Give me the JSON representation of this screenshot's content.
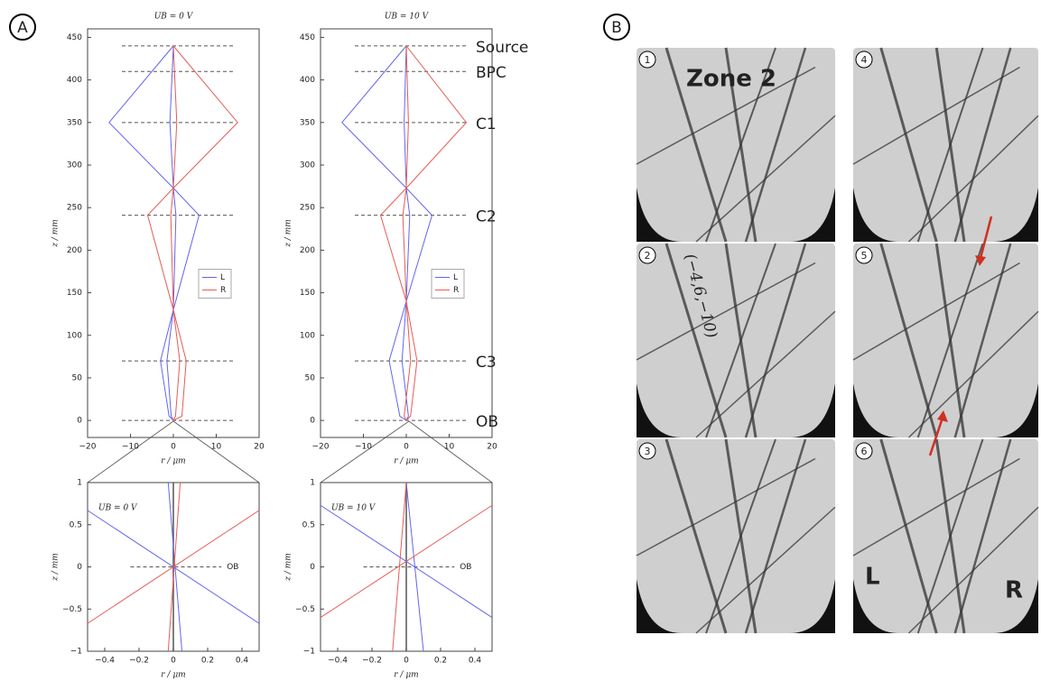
{
  "panel_labels": [
    "A",
    "B"
  ],
  "chart_data": [
    {
      "type": "line",
      "title": "UB = 0 V",
      "xlabel": "r / μm",
      "ylabel": "z / mm",
      "xlim": [
        -20,
        20
      ],
      "ylim": [
        -20,
        460
      ],
      "xticks": [
        {
          "value": -20,
          "label": "−20"
        },
        {
          "value": -10,
          "label": "−10"
        },
        0,
        10,
        20
      ],
      "yticks": [
        0,
        50,
        100,
        150,
        200,
        250,
        300,
        350,
        400,
        450
      ],
      "planes": [
        440,
        410,
        350,
        241,
        70,
        0
      ],
      "legend": "center right",
      "series": [
        {
          "name": "L",
          "color": "#6464f0",
          "x": [
            0,
            -15,
            0,
            6,
            0,
            -3,
            -1,
            0,
            null,
            0,
            -0.8,
            0,
            0.6,
            0,
            -1.5,
            -0.5,
            0
          ],
          "values": [
            440,
            350,
            273,
            241,
            130,
            70,
            5,
            0,
            null,
            440,
            350,
            273,
            241,
            130,
            70,
            5,
            0
          ]
        },
        {
          "name": "R",
          "color": "#e65c55",
          "x": [
            0,
            15,
            0,
            -6,
            0,
            3,
            2,
            0,
            null,
            0,
            0.8,
            0,
            -0.6,
            0,
            1.5,
            0.5,
            0
          ],
          "values": [
            440,
            350,
            273,
            241,
            130,
            70,
            5,
            0,
            null,
            440,
            350,
            273,
            241,
            130,
            70,
            5,
            0
          ]
        }
      ]
    },
    {
      "type": "line",
      "title": "UB = 10 V",
      "xlabel": "r / μm",
      "ylabel": "z / mm",
      "xlim": [
        -20,
        20
      ],
      "ylim": [
        -20,
        460
      ],
      "xticks": [
        {
          "value": -20,
          "label": "−20"
        },
        {
          "value": -10,
          "label": "−10"
        },
        0,
        10,
        20
      ],
      "yticks": [
        0,
        50,
        100,
        150,
        200,
        250,
        300,
        350,
        400,
        450
      ],
      "planes": [
        440,
        410,
        350,
        241,
        70,
        0
      ],
      "plane_labels": [
        "Source",
        "BPC",
        "C1",
        "C2",
        "C3",
        "OB"
      ],
      "legend": "center right",
      "series": [
        {
          "name": "L",
          "color": "#6464f0",
          "x": [
            0,
            -15,
            0,
            6,
            0,
            -4,
            -1.5,
            0,
            null,
            0,
            -0.5,
            0,
            0.8,
            0,
            -1,
            0.5,
            0
          ],
          "values": [
            440,
            350,
            273,
            241,
            140,
            70,
            5,
            0,
            null,
            440,
            350,
            273,
            241,
            140,
            70,
            5,
            0
          ]
        },
        {
          "name": "R",
          "color": "#e65c55",
          "x": [
            0,
            14,
            0,
            -6,
            0,
            2.5,
            1,
            0,
            null,
            0,
            0.5,
            0,
            -0.8,
            0,
            1,
            -0.5,
            0
          ],
          "values": [
            440,
            350,
            273,
            241,
            140,
            70,
            5,
            0,
            null,
            440,
            350,
            273,
            241,
            140,
            70,
            5,
            0
          ]
        }
      ]
    },
    {
      "type": "line",
      "annotation": "UB = 0 V",
      "xlabel": "r / μm",
      "ylabel": "z / mm",
      "xlim": [
        -0.5,
        0.5
      ],
      "ylim": [
        -1,
        1
      ],
      "xticks": [
        {
          "value": -0.4,
          "label": "−0.4"
        },
        {
          "value": -0.2,
          "label": "−0.2"
        },
        0,
        0.2,
        0.4
      ],
      "yticks": [
        {
          "value": -1,
          "label": "−1"
        },
        {
          "value": -0.5,
          "label": "−0.5"
        },
        0,
        0.5,
        1
      ],
      "planes": [
        0
      ],
      "plane_labels": [
        "OB"
      ],
      "series": [
        {
          "name": "L",
          "color": "#6464f0",
          "x": [
            -0.5,
            0.5,
            null,
            -0.03,
            0.05
          ],
          "values": [
            0.67,
            -0.67,
            null,
            1,
            -1
          ]
        },
        {
          "name": "R",
          "color": "#e65c55",
          "x": [
            -0.5,
            0.5,
            null,
            0.04,
            -0.03
          ],
          "values": [
            -0.67,
            0.67,
            null,
            1,
            -1
          ]
        }
      ]
    },
    {
      "type": "line",
      "annotation": "UB = 10 V",
      "xlabel": "r / μm",
      "ylabel": "z / mm",
      "xlim": [
        -0.5,
        0.5
      ],
      "ylim": [
        -1,
        1
      ],
      "xticks": [
        {
          "value": -0.4,
          "label": "−0.4"
        },
        {
          "value": -0.2,
          "label": "−0.2"
        },
        0,
        0.2,
        0.4
      ],
      "yticks": [
        {
          "value": -1,
          "label": "−1"
        },
        {
          "value": -0.5,
          "label": "−0.5"
        },
        0,
        0.5,
        1
      ],
      "planes": [
        0
      ],
      "plane_labels": [
        "OB"
      ],
      "series": [
        {
          "name": "L",
          "color": "#6464f0",
          "x": [
            -0.5,
            0.5,
            null,
            0,
            0.1
          ],
          "values": [
            0.73,
            -0.6,
            null,
            1,
            -1
          ]
        },
        {
          "name": "R",
          "color": "#e65c55",
          "x": [
            -0.5,
            0.5,
            null,
            0,
            -0.08
          ],
          "values": [
            -0.6,
            0.73,
            null,
            1,
            -1
          ]
        }
      ]
    }
  ],
  "micrographs": {
    "tiles": [
      {
        "number": "1",
        "caption": "Zone 2"
      },
      {
        "number": "2",
        "caption": "(−4,6,−10)"
      },
      {
        "number": "3"
      },
      {
        "number": "4"
      },
      {
        "number": "5"
      },
      {
        "number": "6"
      }
    ],
    "side_labels": [
      "L",
      "R"
    ]
  }
}
